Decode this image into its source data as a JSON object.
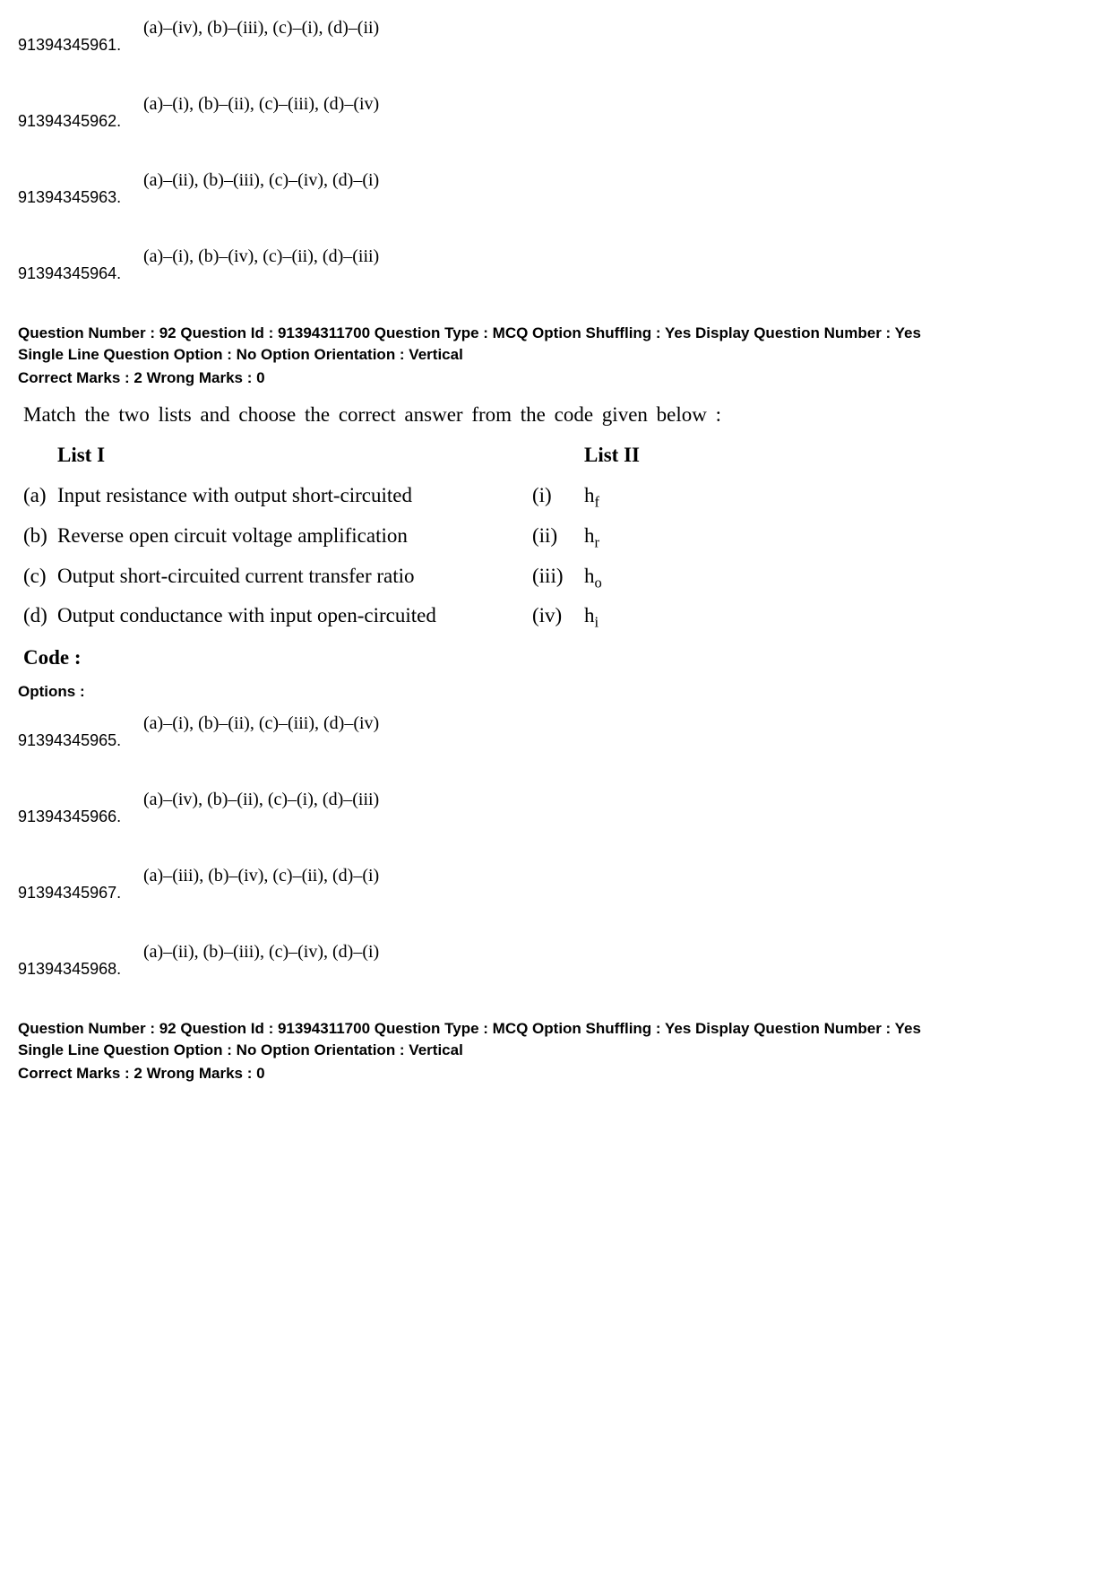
{
  "top_options": [
    {
      "id": "91394345961.",
      "text": "(a)–(iv), (b)–(iii), (c)–(i), (d)–(ii)"
    },
    {
      "id": "91394345962.",
      "text": "(a)–(i), (b)–(ii), (c)–(iii), (d)–(iv)"
    },
    {
      "id": "91394345963.",
      "text": "(a)–(ii), (b)–(iii), (c)–(iv), (d)–(i)"
    },
    {
      "id": "91394345964.",
      "text": "(a)–(i), (b)–(iv), (c)–(ii), (d)–(iii)"
    }
  ],
  "question_meta": {
    "line1": "Question Number : 92  Question Id : 91394311700  Question Type : MCQ  Option Shuffling : Yes  Display Question Number : Yes",
    "line2": "Single Line Question Option : No  Option Orientation : Vertical",
    "marks": "Correct Marks : 2  Wrong Marks : 0"
  },
  "question": {
    "intro": "Match the two lists and choose the correct answer from the code given below :",
    "list1_header": "List I",
    "list2_header": "List II",
    "rows": [
      {
        "lbl": "(a)",
        "desc": "Input resistance with output short-circuited",
        "roman": "(i)",
        "sym": "h",
        "sub": "f"
      },
      {
        "lbl": "(b)",
        "desc": "Reverse open circuit voltage amplification",
        "roman": "(ii)",
        "sym": "h",
        "sub": "r"
      },
      {
        "lbl": "(c)",
        "desc": "Output short-circuited current transfer ratio",
        "roman": "(iii)",
        "sym": "h",
        "sub": "o"
      },
      {
        "lbl": "(d)",
        "desc": "Output conductance with input open-circuited",
        "roman": "(iv)",
        "sym": "h",
        "sub": "i"
      }
    ],
    "code_label": "Code :"
  },
  "options_label": "Options :",
  "answer_options": [
    {
      "id": "91394345965.",
      "text": "(a)–(i), (b)–(ii), (c)–(iii), (d)–(iv)"
    },
    {
      "id": "91394345966.",
      "text": "(a)–(iv), (b)–(ii), (c)–(i), (d)–(iii)"
    },
    {
      "id": "91394345967.",
      "text": "(a)–(iii), (b)–(iv), (c)–(ii), (d)–(i)"
    },
    {
      "id": "91394345968.",
      "text": "(a)–(ii), (b)–(iii), (c)–(iv), (d)–(i)"
    }
  ],
  "question_meta_2": {
    "line1": "Question Number : 92  Question Id : 91394311700  Question Type : MCQ  Option Shuffling : Yes  Display Question Number : Yes",
    "line2": "Single Line Question Option : No  Option Orientation : Vertical",
    "marks": "Correct Marks : 2  Wrong Marks : 0"
  }
}
